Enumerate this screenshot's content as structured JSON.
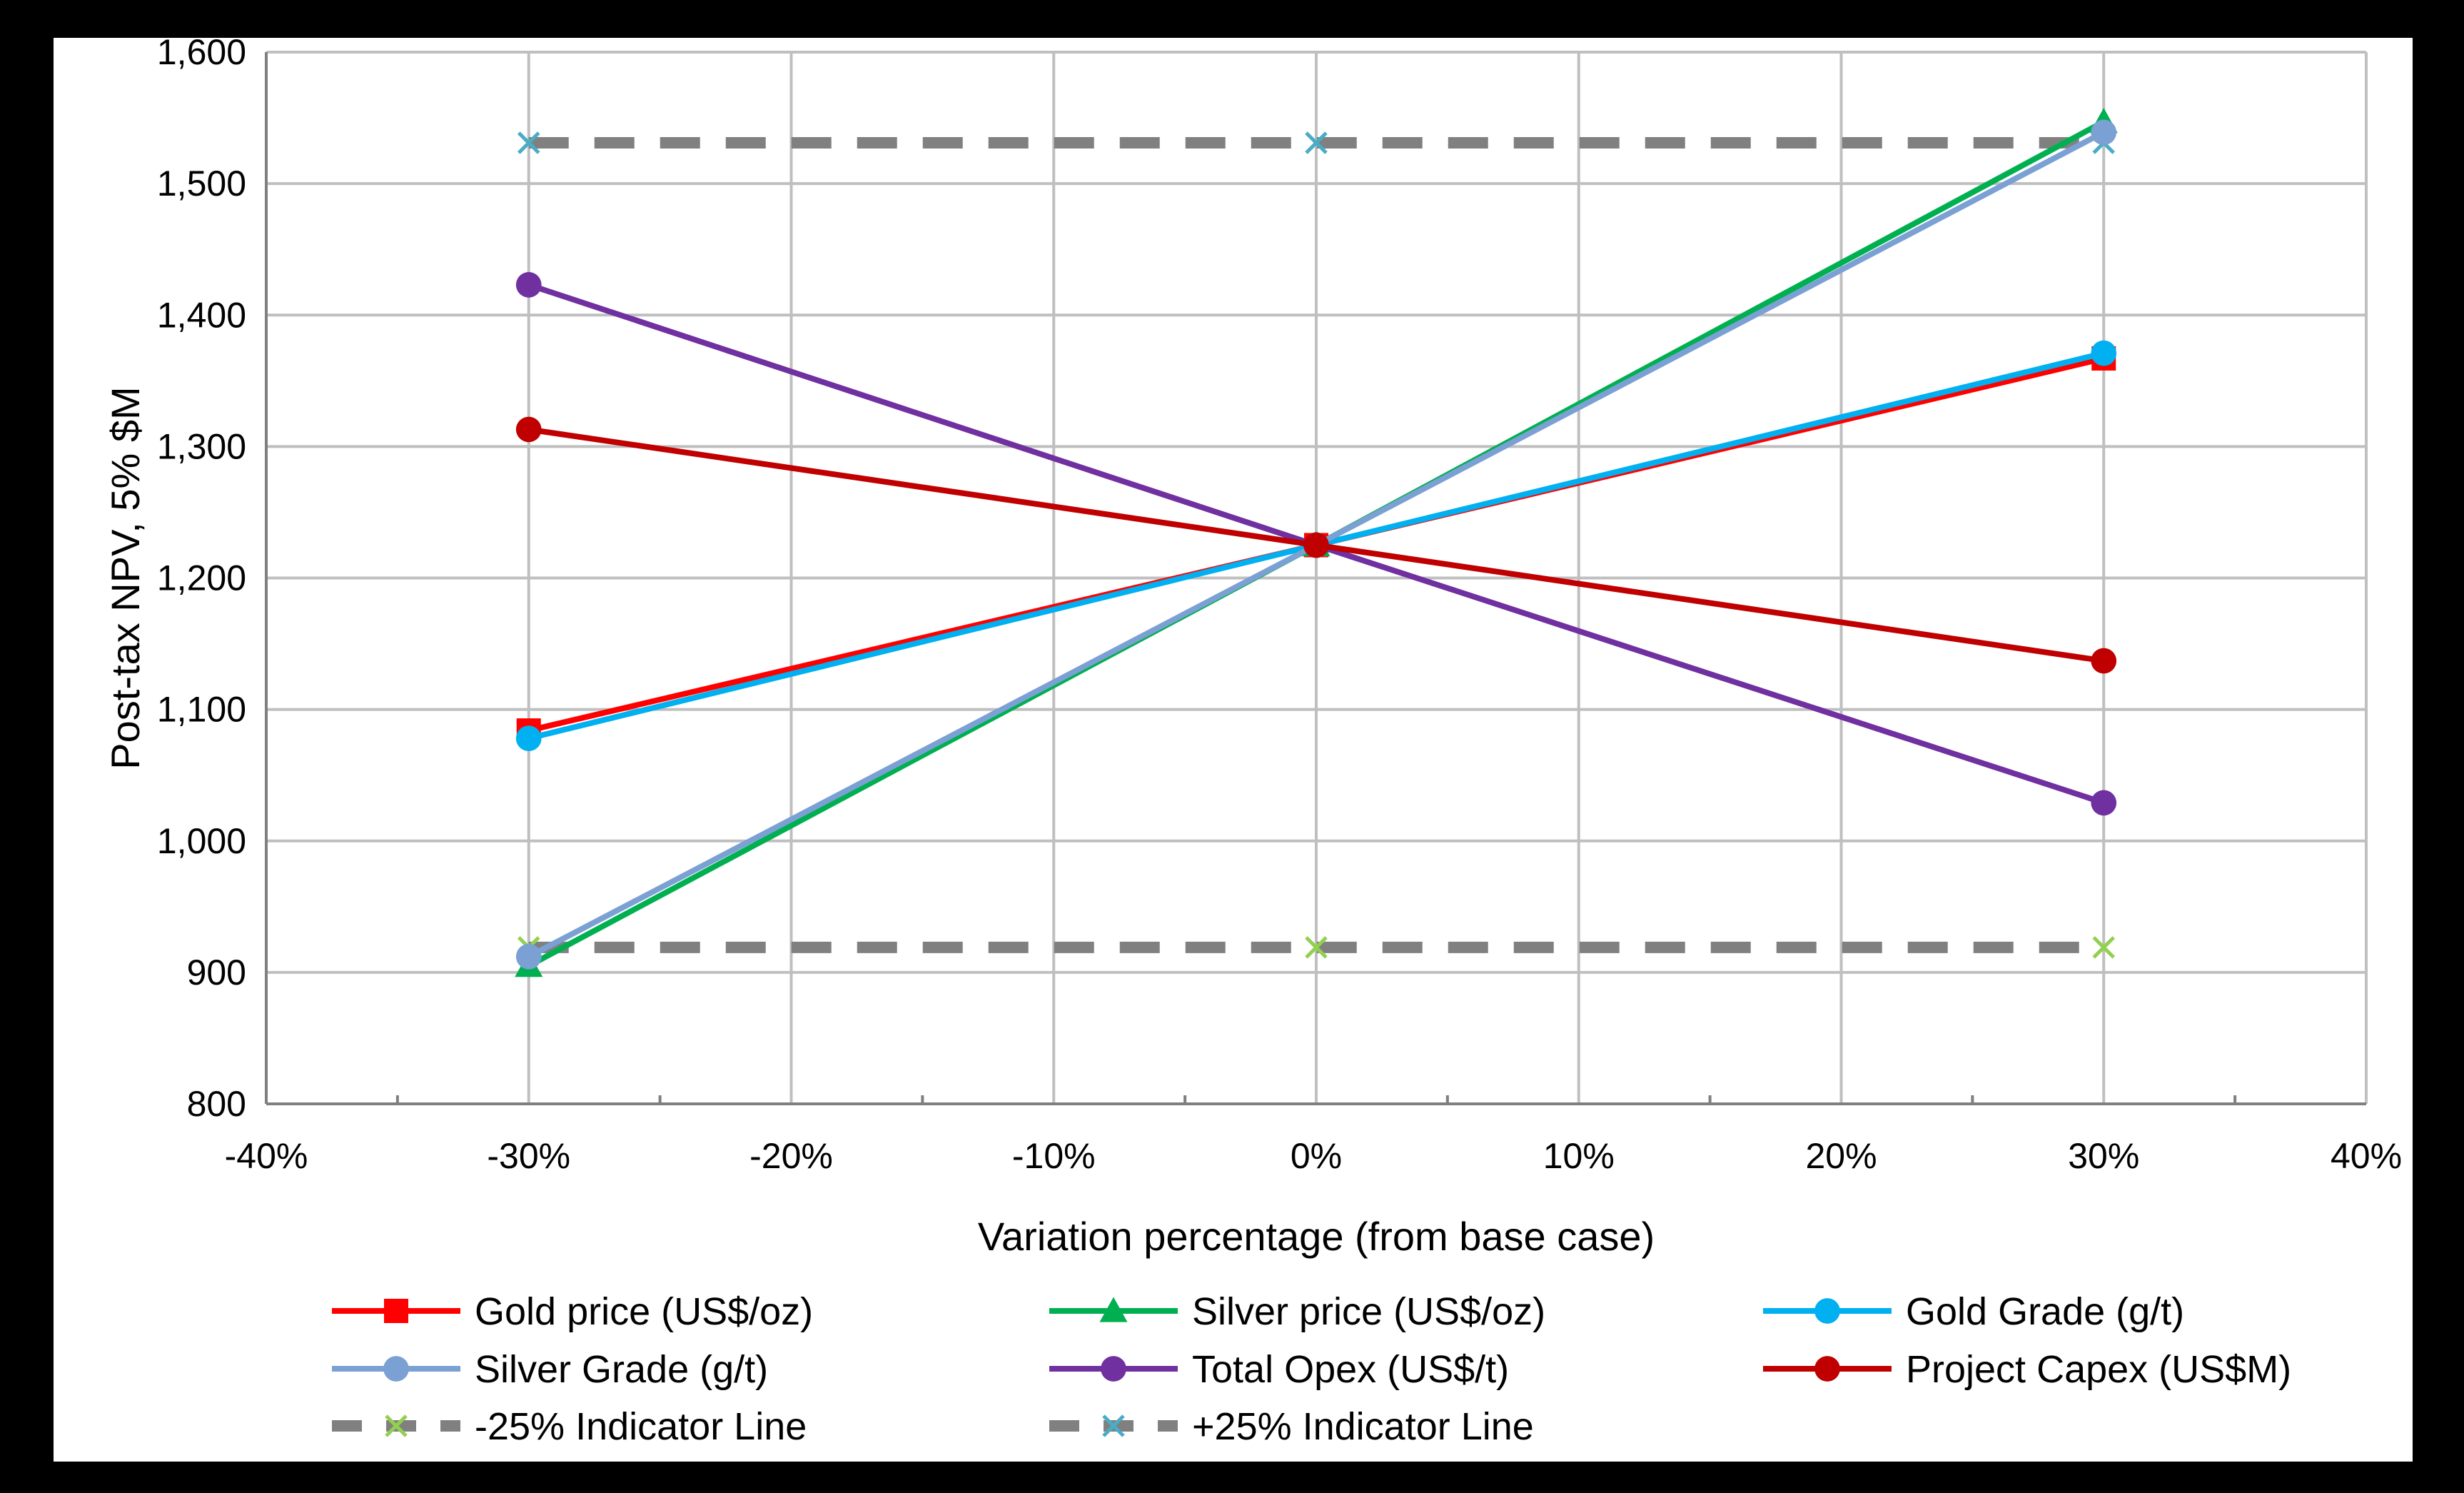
{
  "chart_data": {
    "type": "line",
    "title": "",
    "xlabel": "Variation percentage (from base case)",
    "ylabel": "Post-tax NPV, 5% $M",
    "xlim": [
      -40,
      40
    ],
    "ylim": [
      800,
      1600
    ],
    "x_ticks": [
      "-40%",
      "-30%",
      "-20%",
      "-10%",
      "0%",
      "10%",
      "20%",
      "30%",
      "40%"
    ],
    "y_ticks": [
      "800",
      "900",
      "1,000",
      "1,100",
      "1,200",
      "1,300",
      "1,400",
      "1,500",
      "1,600"
    ],
    "grid": true,
    "legend_position": "bottom",
    "x": [
      -30,
      0,
      30
    ],
    "series": [
      {
        "name": "Gold price (US$/oz)",
        "values": [
          1084,
          1225,
          1367
        ],
        "color": "#ff0000",
        "marker": "square",
        "dash": false
      },
      {
        "name": "Silver price (US$/oz)",
        "values": [
          905,
          1225,
          1547
        ],
        "color": "#00b050",
        "marker": "triangle",
        "dash": false
      },
      {
        "name": "Gold Grade (g/t)",
        "values": [
          1078,
          1225,
          1371
        ],
        "color": "#00b0f0",
        "marker": "circle",
        "dash": false
      },
      {
        "name": "Silver Grade (g/t)",
        "values": [
          912,
          1225,
          1539
        ],
        "color": "#7ba0d4",
        "marker": "circle",
        "dash": false
      },
      {
        "name": "Total Opex (US$/t)",
        "values": [
          1423,
          1225,
          1029
        ],
        "color": "#7030a0",
        "marker": "circle",
        "dash": false
      },
      {
        "name": "Project Capex (US$M)",
        "values": [
          1313,
          1225,
          1137
        ],
        "color": "#c00000",
        "marker": "circle",
        "dash": false
      },
      {
        "name": "-25% Indicator Line",
        "values": [
          919,
          919,
          919
        ],
        "color": "#808080",
        "marker": "x",
        "marker_color": "#92d050",
        "dash": true
      },
      {
        "name": "+25% Indicator Line",
        "values": [
          1531,
          1531,
          1531
        ],
        "color": "#808080",
        "marker": "x",
        "marker_color": "#4bacc6",
        "dash": true
      }
    ]
  }
}
